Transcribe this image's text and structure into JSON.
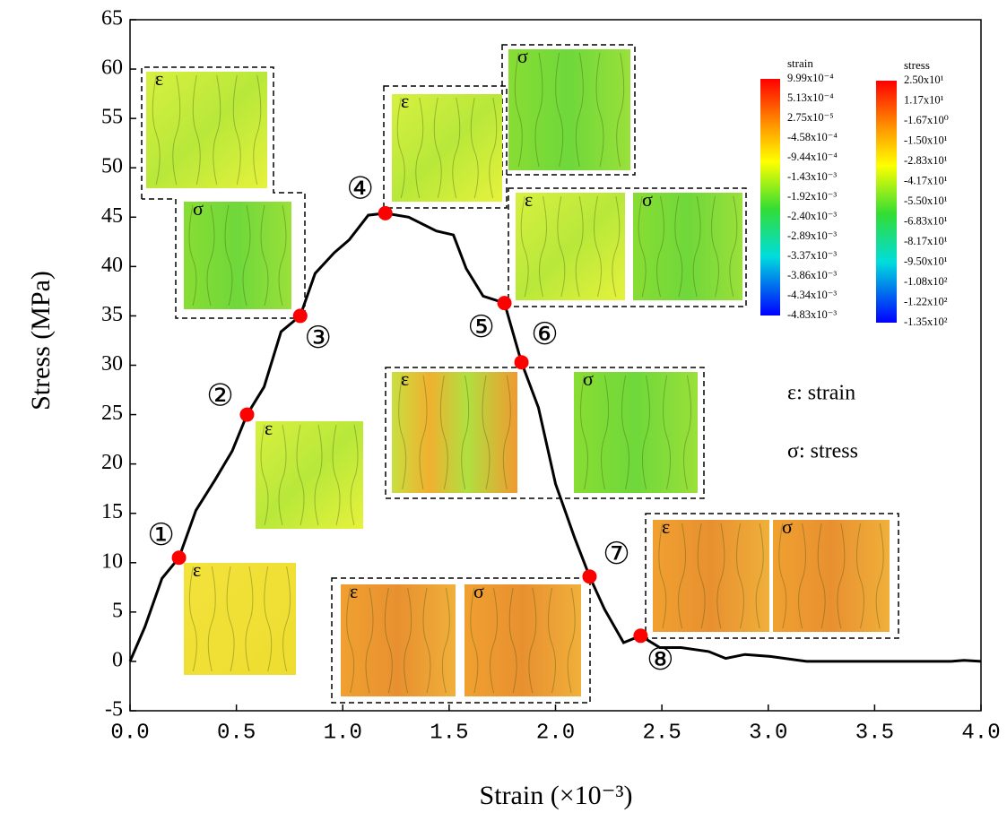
{
  "chart_data": {
    "type": "line",
    "xlabel": "Strain (×10⁻³)",
    "ylabel": "Stress (MPa)",
    "xlim": [
      0,
      4
    ],
    "ylim": [
      -5,
      65
    ],
    "xticks": [
      {
        "value": 0,
        "label": "0.0"
      },
      0.5,
      {
        "value": 1,
        "label": "1.0"
      },
      1.5,
      {
        "value": 2,
        "label": "2.0"
      },
      2.5,
      {
        "value": 3,
        "label": "3.0"
      },
      3.5,
      {
        "value": 4,
        "label": "4.0"
      }
    ],
    "yticks": [
      -5,
      0,
      5,
      10,
      15,
      20,
      25,
      30,
      35,
      40,
      45,
      50,
      55,
      60,
      65
    ],
    "color": "#000000",
    "x": [
      0,
      0.07,
      0.15,
      0.23,
      0.31,
      0.4,
      0.48,
      0.55,
      0.63,
      0.71,
      0.8,
      0.87,
      0.96,
      1.03,
      1.12,
      1.2,
      1.31,
      1.44,
      1.52,
      1.58,
      1.66,
      1.76,
      1.84,
      1.92,
      2.0,
      2.09,
      2.16,
      2.23,
      2.32,
      2.4,
      2.49,
      2.59,
      2.72,
      2.8,
      2.89,
      3.01,
      3.18,
      3.86,
      3.92,
      4.0
    ],
    "values": [
      0,
      3.5,
      8.4,
      10.5,
      15.3,
      18.4,
      21.3,
      25,
      27.8,
      33.4,
      35,
      39.3,
      41.4,
      42.7,
      45.2,
      45.4,
      45.0,
      43.6,
      43.2,
      39.8,
      37.0,
      36.3,
      30.3,
      25.7,
      18,
      12.5,
      8.6,
      5.3,
      1.9,
      2.6,
      1.4,
      1.4,
      1.0,
      0.3,
      0.7,
      0.5,
      0,
      0,
      0.1,
      0
    ],
    "points": {
      "color": "#ff0000",
      "x": [
        0.23,
        0.55,
        0.8,
        1.2,
        1.76,
        1.84,
        2.16,
        2.4
      ],
      "values": [
        10.5,
        25,
        35,
        45.4,
        36.3,
        30.3,
        8.6,
        2.6
      ],
      "labels": [
        "①",
        "②",
        "③",
        "④",
        "⑤",
        "⑥",
        "⑦",
        "⑧"
      ]
    },
    "inset_labels": [
      "ε",
      "σ",
      "ε",
      "ε",
      "ε",
      "σ",
      "ε",
      "σ",
      "ε",
      "σ",
      "ε",
      "σ",
      "ε",
      "σ"
    ],
    "colorbars": [
      {
        "title": "strain",
        "labels": [
          "9.99x10⁻⁴",
          "5.13x10⁻⁴",
          "2.75x10⁻⁵",
          "-4.58x10⁻⁴",
          "-9.44x10⁻⁴",
          "-1.43x10⁻³",
          "-1.92x10⁻³",
          "-2.40x10⁻³",
          "-2.89x10⁻³",
          "-3.37x10⁻³",
          "-3.86x10⁻³",
          "-4.34x10⁻³",
          "-4.83x10⁻³"
        ]
      },
      {
        "title": "stress",
        "labels": [
          "2.50x10¹",
          "1.17x10¹",
          "-1.67x10⁰",
          "-1.50x10¹",
          "-2.83x10¹",
          "-4.17x10¹",
          "-5.50x10¹",
          "-6.83x10¹",
          "-8.17x10¹",
          "-9.50x10¹",
          "-1.08x10²",
          "-1.22x10²",
          "-1.35x10²"
        ]
      }
    ],
    "legend_notes": [
      "ε: strain",
      "σ: stress"
    ]
  }
}
